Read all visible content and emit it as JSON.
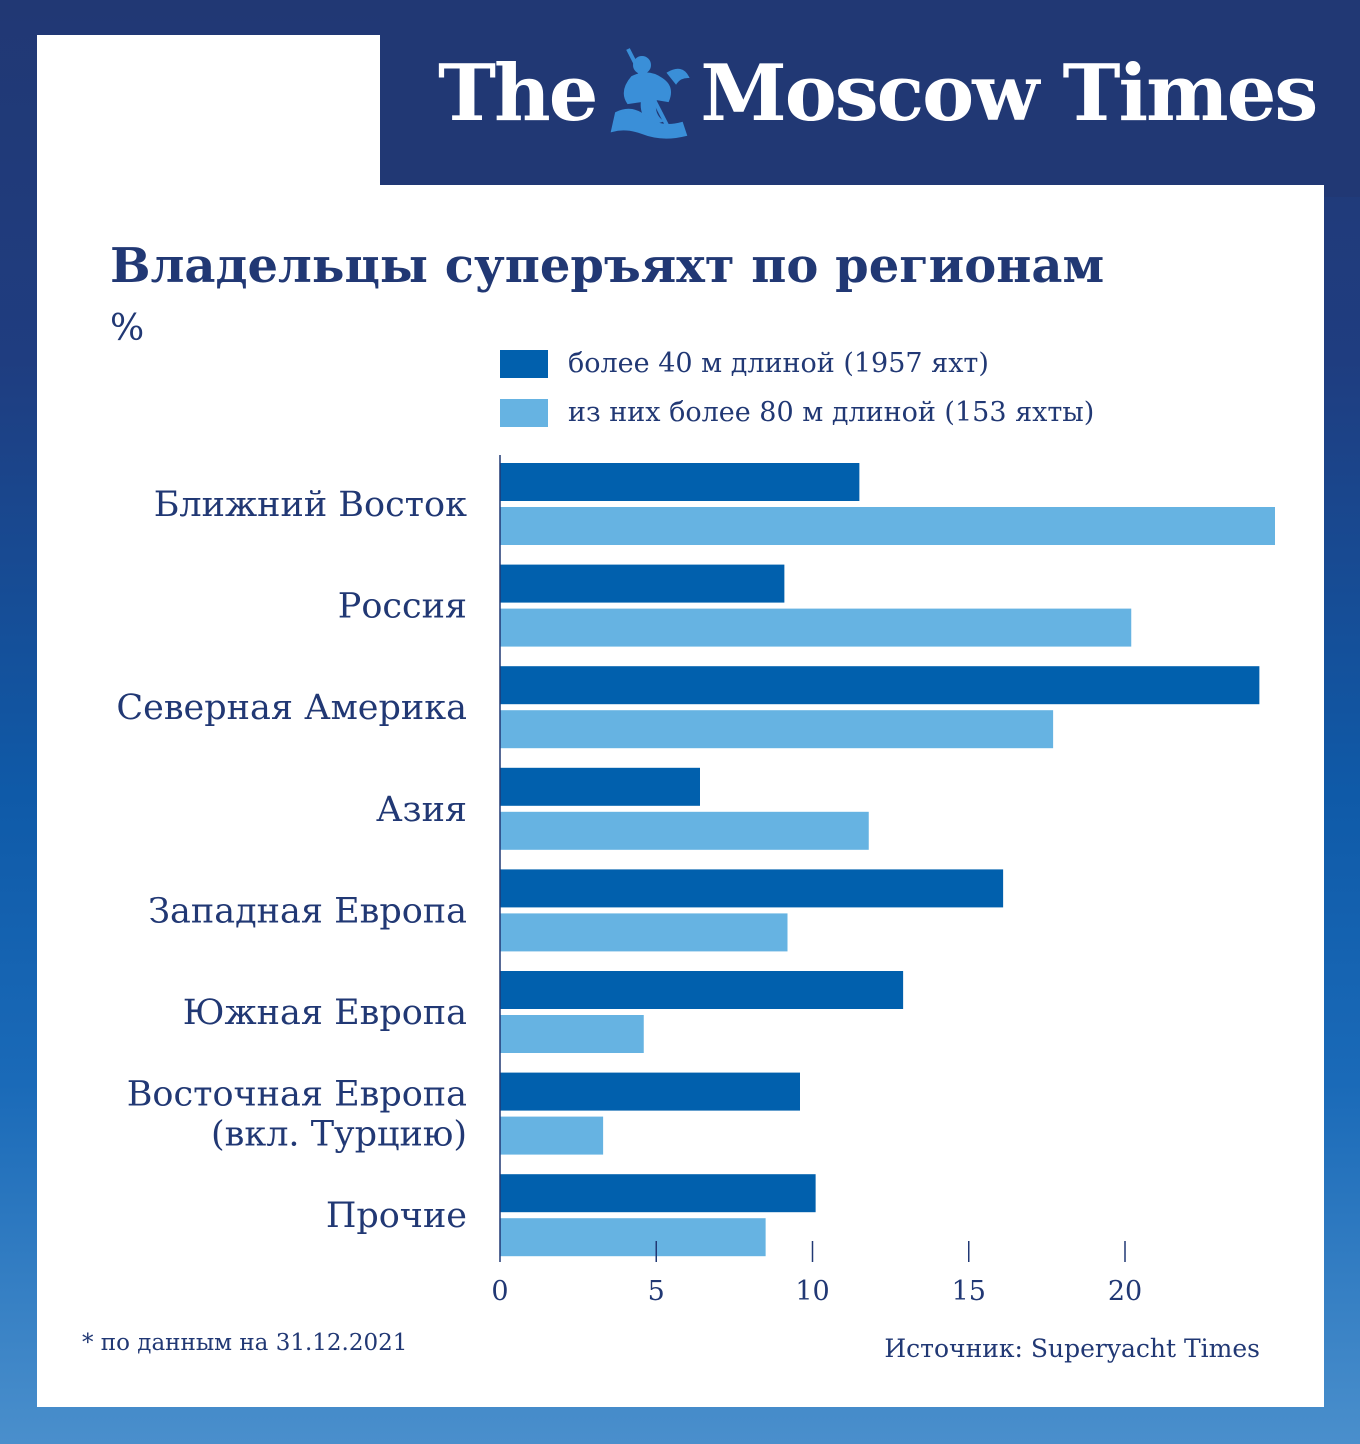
{
  "header": {
    "logo_left": "The",
    "logo_right": "Moscow Times"
  },
  "chart_data": {
    "type": "bar",
    "orientation": "horizontal",
    "title": "Владельцы суперъяхт по регионам",
    "unit": "%",
    "categories": [
      [
        "Ближний Восток"
      ],
      [
        "Россия"
      ],
      [
        "Северная Америка"
      ],
      [
        "Азия"
      ],
      [
        "Западная Европа"
      ],
      [
        "Южная Европа"
      ],
      [
        "Восточная Европа",
        "(вкл. Турцию)"
      ],
      [
        "Прочие"
      ]
    ],
    "series": [
      {
        "name": "более 40 м длиной (1957 яхт)",
        "color": "#0160ad",
        "values": [
          11.5,
          9.1,
          24.3,
          6.4,
          16.1,
          12.9,
          9.6,
          10.1
        ]
      },
      {
        "name": "из них более 80 м длиной (153 яхты)",
        "color": "#66b3e2",
        "values": [
          24.8,
          20.2,
          17.7,
          11.8,
          9.2,
          4.6,
          3.3,
          8.5
        ]
      }
    ],
    "xlim": [
      0,
      25
    ],
    "xticks": [
      "0",
      "5",
      "10",
      "15",
      "20"
    ],
    "grid": false,
    "legend_placement": "top"
  },
  "footer": {
    "note": "* по данным на 31.12.2021",
    "source": "Источник: Superyacht Times"
  },
  "colors": {
    "navy": "#213874",
    "dark_bar": "#0160ad",
    "light_bar": "#66b3e2"
  }
}
